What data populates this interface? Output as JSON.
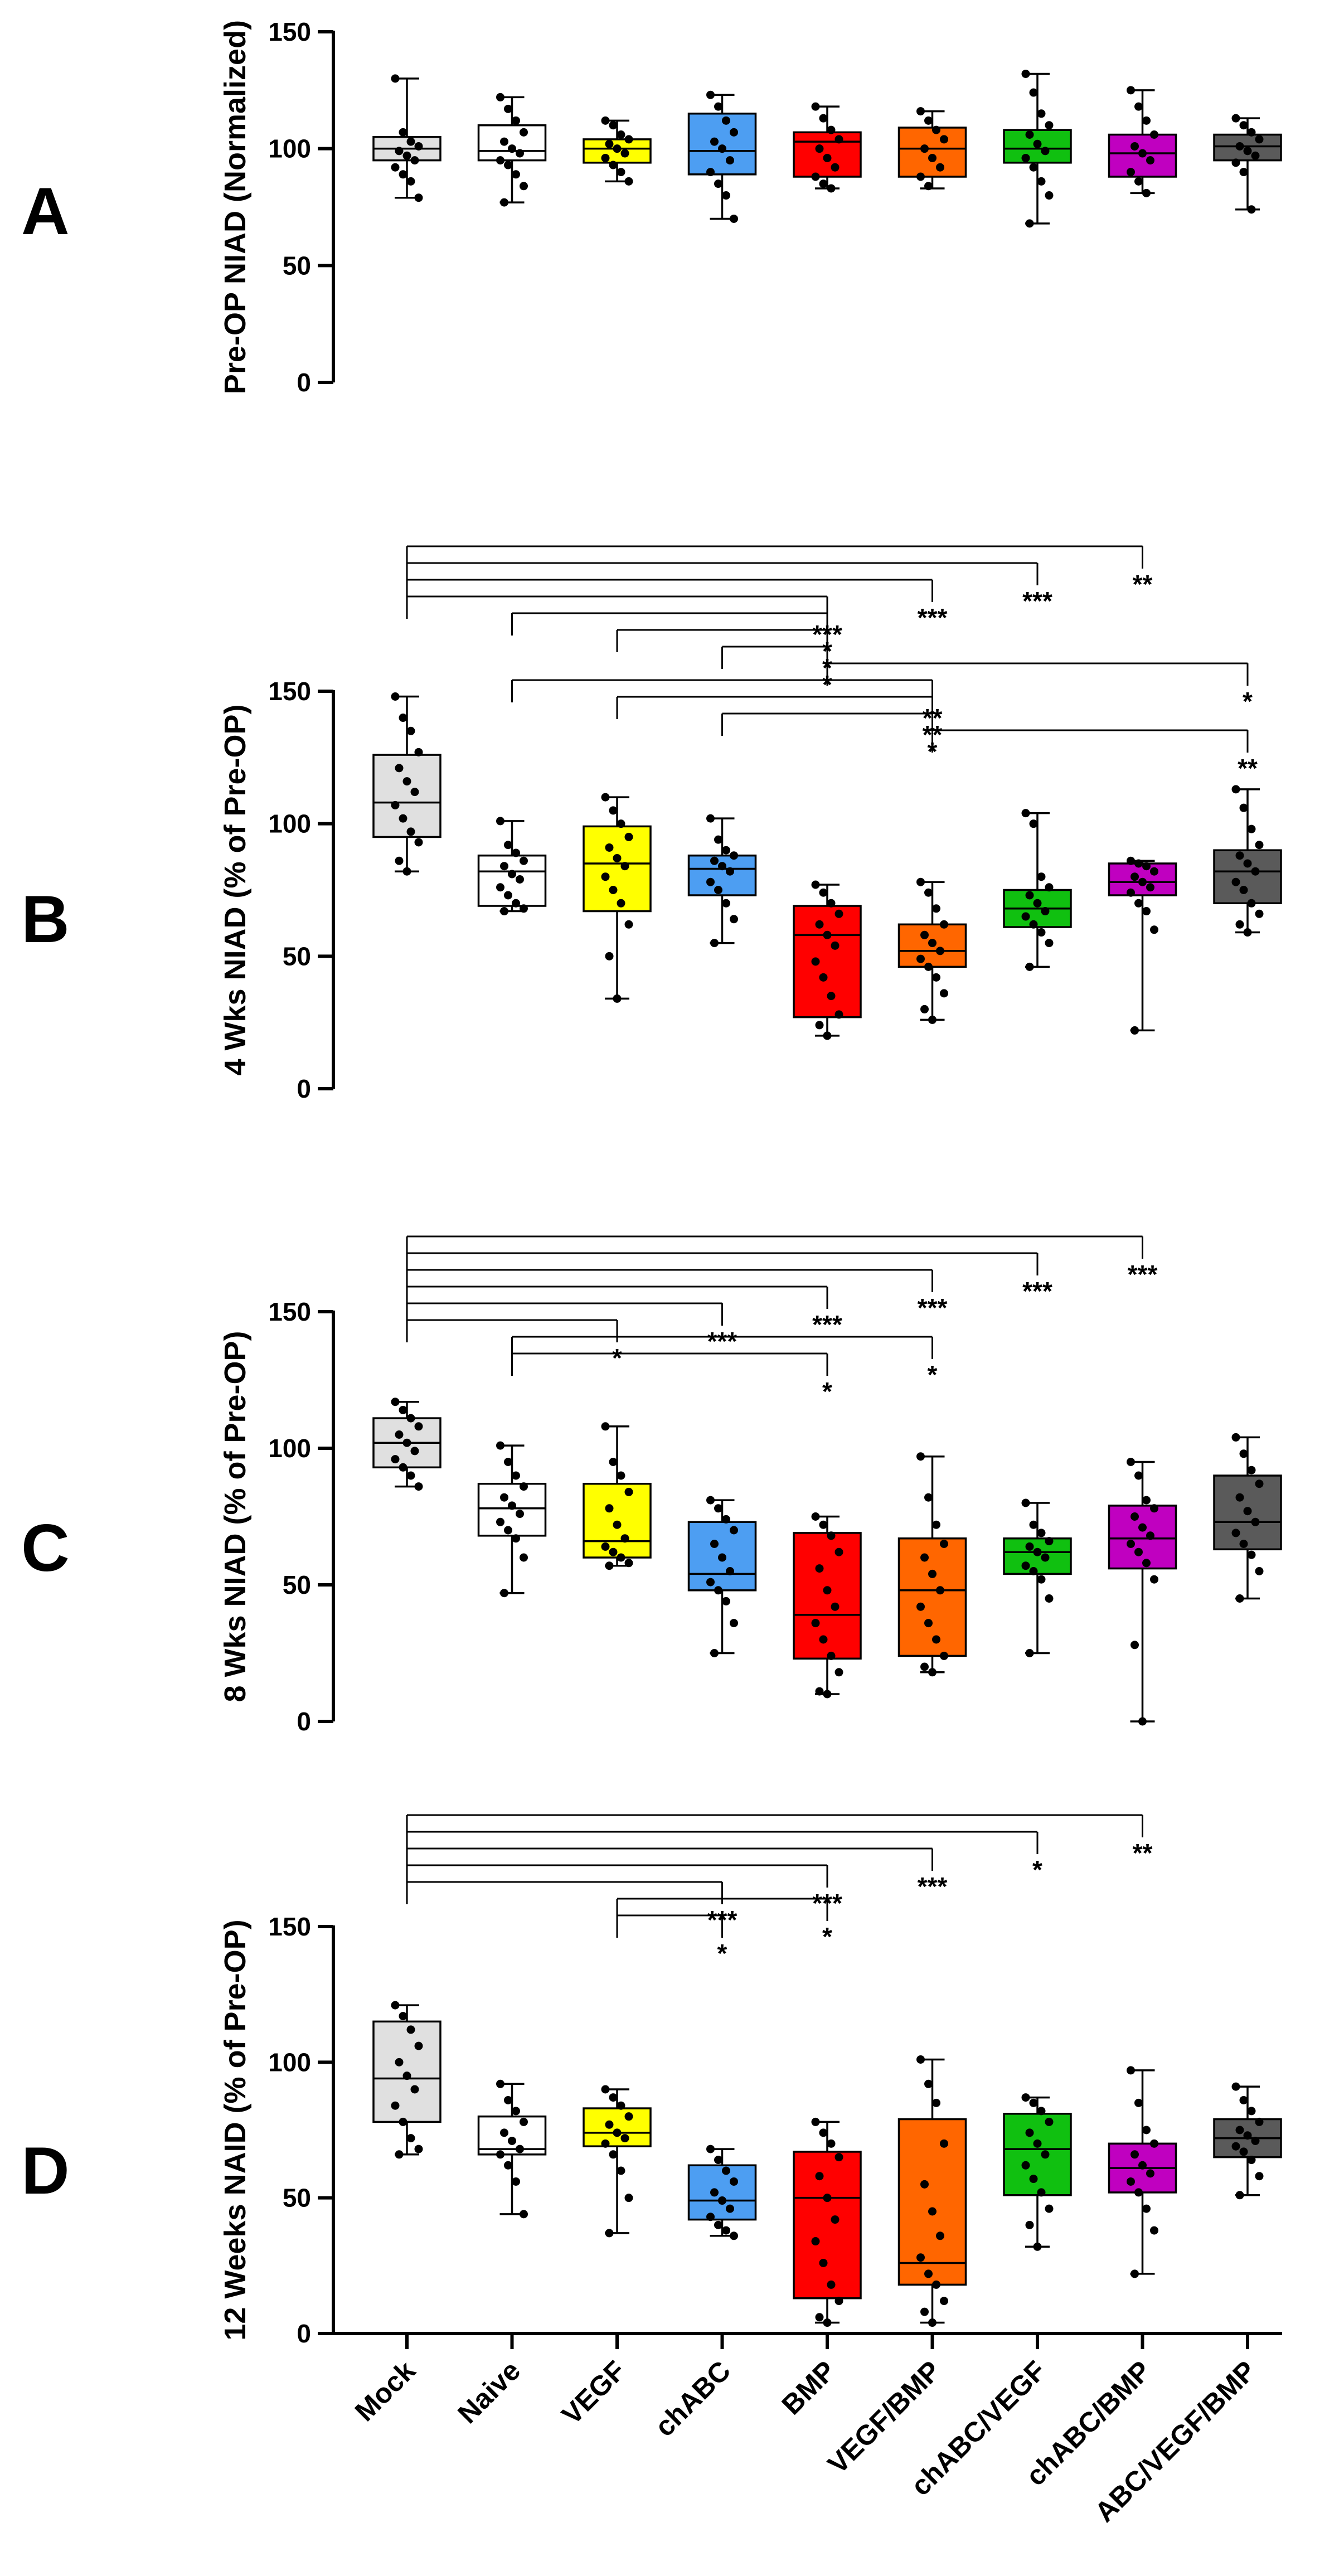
{
  "colors": {
    "Mock": "#e0e0e0",
    "Naive": "#ffffff",
    "VEGF": "#ffff00",
    "chABC": "#4d9ef2",
    "BMP": "#ff0000",
    "VEGF/BMP": "#ff6600",
    "chABC/VEGF": "#10c010",
    "chABC/BMP": "#c000c0",
    "ABC/VEGF/BMP": "#5a5a5a"
  },
  "chart_data": [
    {
      "type": "box",
      "panel": "A",
      "ylabel": "Pre-OP NIAD (Normalized)",
      "ylim": [
        0,
        150
      ],
      "yticks": [
        0,
        50,
        100,
        150
      ],
      "categories": [
        "Mock",
        "Naive",
        "VEGF",
        "chABC",
        "BMP",
        "VEGF/BMP",
        "chABC/VEGF",
        "chABC/BMP",
        "ABC/VEGF/BMP"
      ],
      "boxes": [
        {
          "min": 79,
          "q1": 95,
          "median": 100,
          "q3": 105,
          "max": 130,
          "points": [
            130,
            107,
            103,
            101,
            99,
            97,
            95,
            92,
            89,
            86,
            79
          ]
        },
        {
          "min": 77,
          "q1": 95,
          "median": 99,
          "q3": 110,
          "max": 122,
          "points": [
            122,
            117,
            112,
            107,
            103,
            100,
            98,
            95,
            93,
            89,
            84,
            77
          ]
        },
        {
          "min": 86,
          "q1": 94,
          "median": 100,
          "q3": 104,
          "max": 112,
          "points": [
            112,
            110,
            106,
            104,
            102,
            100,
            98,
            96,
            93,
            90,
            86
          ]
        },
        {
          "min": 70,
          "q1": 89,
          "median": 99,
          "q3": 115,
          "max": 123,
          "points": [
            123,
            118,
            112,
            107,
            103,
            100,
            95,
            90,
            85,
            80,
            70
          ]
        },
        {
          "min": 83,
          "q1": 88,
          "median": 103,
          "q3": 107,
          "max": 118,
          "points": [
            118,
            113,
            108,
            104,
            100,
            96,
            92,
            88,
            85,
            83
          ]
        },
        {
          "min": 83,
          "q1": 88,
          "median": 100,
          "q3": 109,
          "max": 116,
          "points": [
            116,
            112,
            108,
            104,
            100,
            96,
            92,
            88,
            84
          ]
        },
        {
          "min": 68,
          "q1": 94,
          "median": 100,
          "q3": 108,
          "max": 132,
          "points": [
            132,
            124,
            115,
            110,
            106,
            102,
            99,
            96,
            92,
            86,
            80,
            68
          ]
        },
        {
          "min": 81,
          "q1": 88,
          "median": 98,
          "q3": 106,
          "max": 125,
          "points": [
            125,
            118,
            112,
            106,
            101,
            98,
            95,
            90,
            86,
            81
          ]
        },
        {
          "min": 74,
          "q1": 95,
          "median": 101,
          "q3": 106,
          "max": 113,
          "points": [
            113,
            110,
            107,
            104,
            101,
            99,
            97,
            94,
            90,
            74
          ]
        }
      ],
      "annotations": []
    },
    {
      "type": "box",
      "panel": "B",
      "ylabel": "4 Wks NIAD (% of Pre-OP)",
      "ylim": [
        0,
        150
      ],
      "yticks": [
        0,
        50,
        100,
        150
      ],
      "categories": [
        "Mock",
        "Naive",
        "VEGF",
        "chABC",
        "BMP",
        "VEGF/BMP",
        "chABC/VEGF",
        "chABC/BMP",
        "ABC/VEGF/BMP"
      ],
      "boxes": [
        {
          "min": 82,
          "q1": 95,
          "median": 108,
          "q3": 126,
          "max": 148,
          "points": [
            148,
            140,
            135,
            127,
            121,
            116,
            112,
            107,
            102,
            97,
            93,
            86,
            82
          ]
        },
        {
          "min": 67,
          "q1": 69,
          "median": 82,
          "q3": 88,
          "max": 101,
          "points": [
            101,
            92,
            89,
            86,
            84,
            81,
            79,
            76,
            73,
            70,
            68,
            67
          ]
        },
        {
          "min": 34,
          "q1": 67,
          "median": 85,
          "q3": 99,
          "max": 110,
          "points": [
            110,
            105,
            100,
            95,
            91,
            87,
            84,
            80,
            75,
            70,
            62,
            50,
            34
          ]
        },
        {
          "min": 55,
          "q1": 73,
          "median": 83,
          "q3": 88,
          "max": 102,
          "points": [
            102,
            94,
            90,
            88,
            86,
            84,
            82,
            78,
            75,
            70,
            64,
            55
          ]
        },
        {
          "min": 20,
          "q1": 27,
          "median": 58,
          "q3": 69,
          "max": 77,
          "points": [
            77,
            74,
            70,
            66,
            62,
            58,
            54,
            48,
            42,
            35,
            28,
            24,
            20
          ]
        },
        {
          "min": 26,
          "q1": 46,
          "median": 52,
          "q3": 62,
          "max": 78,
          "points": [
            78,
            74,
            68,
            62,
            58,
            55,
            52,
            49,
            46,
            42,
            36,
            30,
            26
          ]
        },
        {
          "min": 46,
          "q1": 61,
          "median": 68,
          "q3": 75,
          "max": 104,
          "points": [
            104,
            100,
            80,
            76,
            73,
            70,
            67,
            65,
            62,
            59,
            55,
            46
          ]
        },
        {
          "min": 22,
          "q1": 73,
          "median": 78,
          "q3": 85,
          "max": 86,
          "points": [
            86,
            85,
            84,
            82,
            80,
            78,
            76,
            74,
            70,
            67,
            60,
            22
          ]
        },
        {
          "min": 59,
          "q1": 70,
          "median": 82,
          "q3": 90,
          "max": 113,
          "points": [
            113,
            106,
            98,
            92,
            88,
            85,
            82,
            78,
            75,
            70,
            66,
            62,
            59
          ]
        }
      ],
      "annotations": [
        {
          "from": "Mock",
          "to": "chABC/BMP",
          "label": "**"
        },
        {
          "from": "Mock",
          "to": "chABC/VEGF",
          "label": "***"
        },
        {
          "from": "Mock",
          "to": "VEGF/BMP",
          "label": "***"
        },
        {
          "from": "Mock",
          "to": "BMP",
          "label": "***"
        },
        {
          "from": "Naive",
          "to": "BMP",
          "label": "*"
        },
        {
          "from": "VEGF",
          "to": "BMP",
          "label": "*"
        },
        {
          "from": "chABC",
          "to": "BMP",
          "label": "*"
        },
        {
          "from": "BMP",
          "to": "ABC/VEGF/BMP",
          "label": "*"
        },
        {
          "from": "Naive",
          "to": "VEGF/BMP",
          "label": "**"
        },
        {
          "from": "VEGF",
          "to": "VEGF/BMP",
          "label": "**"
        },
        {
          "from": "chABC",
          "to": "VEGF/BMP",
          "label": "*"
        },
        {
          "from": "VEGF/BMP",
          "to": "ABC/VEGF/BMP",
          "label": "**"
        }
      ]
    },
    {
      "type": "box",
      "panel": "C",
      "ylabel": "8 Wks NIAD (% of Pre-OP)",
      "ylim": [
        0,
        150
      ],
      "yticks": [
        0,
        50,
        100,
        150
      ],
      "categories": [
        "Mock",
        "Naive",
        "VEGF",
        "chABC",
        "BMP",
        "VEGF/BMP",
        "chABC/VEGF",
        "chABC/BMP",
        "ABC/VEGF/BMP"
      ],
      "boxes": [
        {
          "min": 86,
          "q1": 93,
          "median": 102,
          "q3": 111,
          "max": 117,
          "points": [
            117,
            114,
            111,
            108,
            105,
            102,
            99,
            96,
            93,
            90,
            86
          ]
        },
        {
          "min": 47,
          "q1": 68,
          "median": 78,
          "q3": 87,
          "max": 101,
          "points": [
            101,
            95,
            90,
            86,
            82,
            79,
            76,
            73,
            70,
            67,
            60,
            47
          ]
        },
        {
          "min": 57,
          "q1": 60,
          "median": 66,
          "q3": 87,
          "max": 108,
          "points": [
            108,
            95,
            90,
            84,
            78,
            72,
            67,
            64,
            62,
            60,
            58,
            57
          ]
        },
        {
          "min": 25,
          "q1": 48,
          "median": 54,
          "q3": 73,
          "max": 81,
          "points": [
            81,
            78,
            74,
            70,
            65,
            60,
            55,
            51,
            48,
            44,
            36,
            25
          ]
        },
        {
          "min": 10,
          "q1": 23,
          "median": 39,
          "q3": 69,
          "max": 75,
          "points": [
            75,
            72,
            68,
            62,
            56,
            48,
            42,
            36,
            30,
            24,
            18,
            11,
            10
          ]
        },
        {
          "min": 18,
          "q1": 24,
          "median": 48,
          "q3": 67,
          "max": 97,
          "points": [
            97,
            82,
            72,
            65,
            60,
            54,
            48,
            42,
            36,
            30,
            24,
            20,
            18
          ]
        },
        {
          "min": 25,
          "q1": 54,
          "median": 62,
          "q3": 67,
          "max": 80,
          "points": [
            80,
            72,
            69,
            66,
            64,
            62,
            60,
            57,
            55,
            52,
            45,
            25
          ]
        },
        {
          "min": 0,
          "q1": 56,
          "median": 67,
          "q3": 79,
          "max": 95,
          "points": [
            95,
            90,
            81,
            78,
            75,
            71,
            68,
            65,
            62,
            58,
            52,
            28,
            0
          ]
        },
        {
          "min": 45,
          "q1": 63,
          "median": 73,
          "q3": 90,
          "max": 104,
          "points": [
            104,
            98,
            92,
            87,
            82,
            77,
            73,
            69,
            65,
            61,
            55,
            45
          ]
        }
      ],
      "annotations": [
        {
          "from": "Mock",
          "to": "chABC/BMP",
          "label": "***"
        },
        {
          "from": "Mock",
          "to": "chABC/VEGF",
          "label": "***"
        },
        {
          "from": "Mock",
          "to": "VEGF/BMP",
          "label": "***"
        },
        {
          "from": "Mock",
          "to": "BMP",
          "label": "***"
        },
        {
          "from": "Mock",
          "to": "chABC",
          "label": "***"
        },
        {
          "from": "Mock",
          "to": "VEGF",
          "label": "*"
        },
        {
          "from": "Naive",
          "to": "VEGF/BMP",
          "label": "*"
        },
        {
          "from": "Naive",
          "to": "BMP",
          "label": "*"
        }
      ]
    },
    {
      "type": "box",
      "panel": "D",
      "ylabel": "12 Weeks NAID (% of Pre-OP)",
      "ylim": [
        0,
        150
      ],
      "yticks": [
        0,
        50,
        100,
        150
      ],
      "categories": [
        "Mock",
        "Naive",
        "VEGF",
        "chABC",
        "BMP",
        "VEGF/BMP",
        "chABC/VEGF",
        "chABC/BMP",
        "ABC/VEGF/BMP"
      ],
      "boxes": [
        {
          "min": 66,
          "q1": 78,
          "median": 94,
          "q3": 115,
          "max": 121,
          "points": [
            121,
            117,
            112,
            106,
            100,
            95,
            90,
            84,
            78,
            72,
            68,
            66
          ]
        },
        {
          "min": 44,
          "q1": 66,
          "median": 68,
          "q3": 80,
          "max": 92,
          "points": [
            92,
            86,
            82,
            78,
            74,
            71,
            68,
            66,
            62,
            56,
            44
          ]
        },
        {
          "min": 37,
          "q1": 69,
          "median": 74,
          "q3": 83,
          "max": 90,
          "points": [
            90,
            87,
            84,
            80,
            77,
            74,
            72,
            70,
            66,
            60,
            50,
            37
          ]
        },
        {
          "min": 36,
          "q1": 42,
          "median": 49,
          "q3": 62,
          "max": 68,
          "points": [
            68,
            64,
            60,
            56,
            52,
            49,
            46,
            43,
            40,
            38,
            36
          ]
        },
        {
          "min": 4,
          "q1": 13,
          "median": 50,
          "q3": 67,
          "max": 78,
          "points": [
            78,
            74,
            70,
            65,
            58,
            50,
            42,
            34,
            26,
            18,
            12,
            6,
            4
          ]
        },
        {
          "min": 4,
          "q1": 18,
          "median": 26,
          "q3": 79,
          "max": 101,
          "points": [
            101,
            92,
            85,
            70,
            55,
            45,
            36,
            28,
            22,
            18,
            12,
            8,
            4
          ]
        },
        {
          "min": 32,
          "q1": 51,
          "median": 68,
          "q3": 81,
          "max": 87,
          "points": [
            87,
            85,
            82,
            78,
            74,
            70,
            66,
            62,
            57,
            52,
            46,
            40,
            32
          ]
        },
        {
          "min": 22,
          "q1": 52,
          "median": 61,
          "q3": 70,
          "max": 97,
          "points": [
            97,
            85,
            75,
            70,
            66,
            62,
            59,
            56,
            52,
            46,
            38,
            22
          ]
        },
        {
          "min": 51,
          "q1": 65,
          "median": 72,
          "q3": 79,
          "max": 91,
          "points": [
            91,
            86,
            82,
            78,
            75,
            73,
            71,
            69,
            67,
            64,
            58,
            51
          ]
        }
      ],
      "annotations": [
        {
          "from": "Mock",
          "to": "chABC/BMP",
          "label": "**"
        },
        {
          "from": "Mock",
          "to": "chABC/VEGF",
          "label": "*"
        },
        {
          "from": "Mock",
          "to": "VEGF/BMP",
          "label": "***"
        },
        {
          "from": "Mock",
          "to": "BMP",
          "label": "***"
        },
        {
          "from": "Mock",
          "to": "chABC",
          "label": "***"
        },
        {
          "from": "VEGF",
          "to": "BMP",
          "label": "*"
        },
        {
          "from": "VEGF",
          "to": "chABC",
          "label": "*"
        }
      ]
    }
  ]
}
